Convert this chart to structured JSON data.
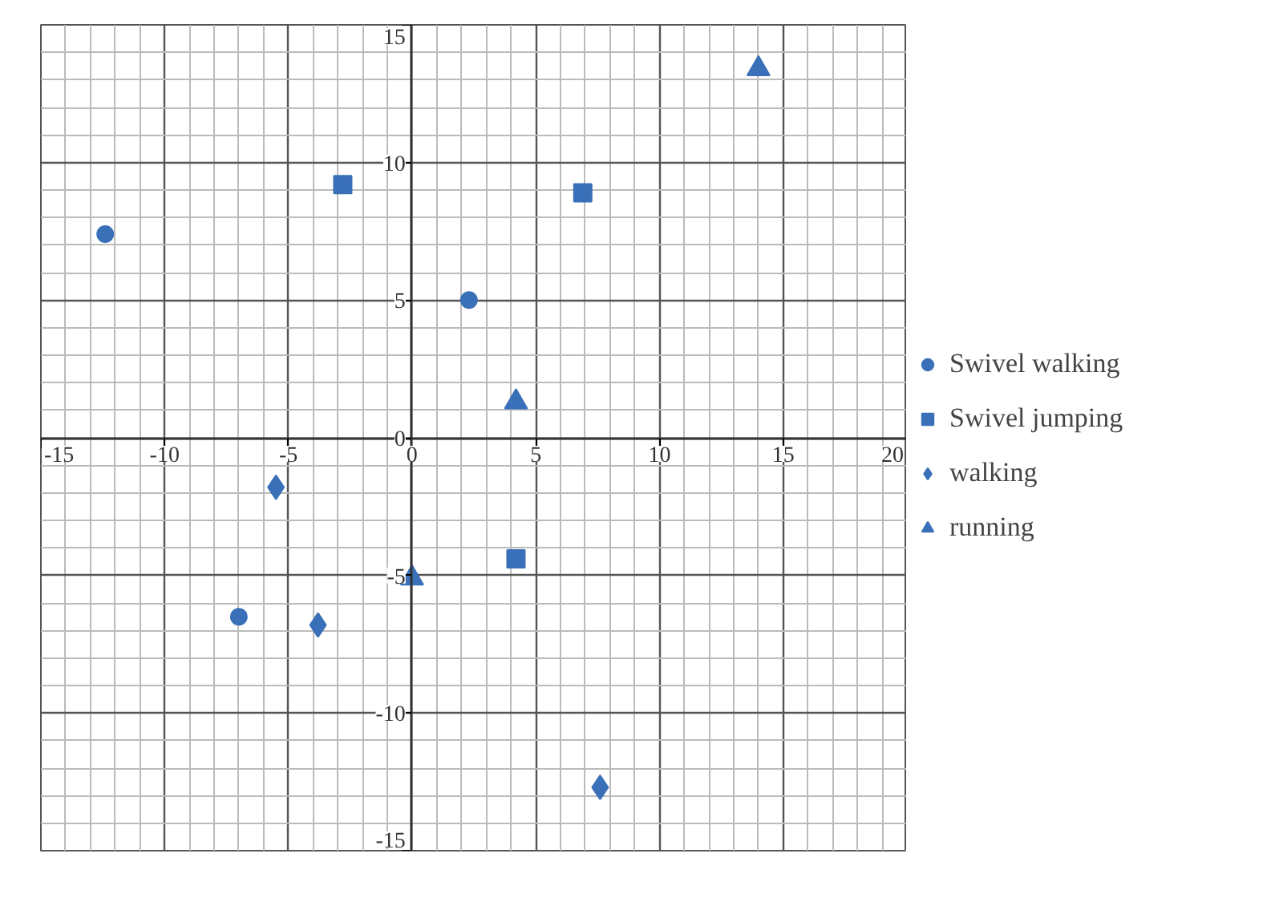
{
  "chart_data": {
    "type": "scatter",
    "xlim": [
      -15,
      20
    ],
    "ylim": [
      -15,
      15
    ],
    "xticks": [
      -15,
      -10,
      -5,
      0,
      5,
      10,
      15,
      20
    ],
    "yticks": [
      -15,
      -10,
      -5,
      0,
      5,
      10,
      15
    ],
    "grid": true,
    "legend": "right",
    "series": [
      {
        "name": "Swivel walking",
        "color": "#3a70b8",
        "marker": "circle",
        "x": [
          -12.4,
          2.3,
          -7.0
        ],
        "values": [
          7.4,
          5.0,
          -6.5
        ]
      },
      {
        "name": "Swivel jumping",
        "color": "#3a70b8",
        "marker": "square",
        "x": [
          -2.8,
          6.9,
          4.2
        ],
        "values": [
          9.2,
          8.9,
          -4.4
        ]
      },
      {
        "name": "walking",
        "color": "#3a70b8",
        "marker": "diamond",
        "x": [
          -5.5,
          -3.8,
          7.6
        ],
        "values": [
          -1.8,
          -6.8,
          -12.7
        ]
      },
      {
        "name": "running",
        "color": "#3a70b8",
        "marker": "triangle",
        "x": [
          14.0,
          4.2,
          0.0
        ],
        "values": [
          13.4,
          1.3,
          -5.1
        ]
      }
    ]
  }
}
